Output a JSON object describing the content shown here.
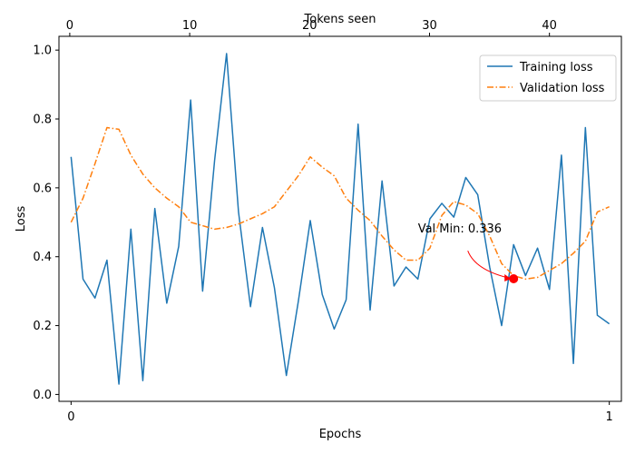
{
  "chart_data": {
    "type": "line",
    "xlabel": "Epochs",
    "ylabel": "Loss",
    "top_xlabel": "Tokens seen",
    "xlim": [
      -0.0225,
      1.0225
    ],
    "ylim": [
      -0.02,
      1.04
    ],
    "x_ticks": [
      0,
      1
    ],
    "y_ticks": [
      0.0,
      0.2,
      0.4,
      0.6,
      0.8,
      1.0
    ],
    "y_tick_labels": [
      "0.0",
      "0.2",
      "0.4",
      "0.6",
      "0.8",
      "1.0"
    ],
    "top_x_ticks": [
      0,
      10,
      20,
      30,
      40
    ],
    "top_xlim": [
      -0.9,
      46.0
    ],
    "legend_position": "top-right",
    "grid": false,
    "series": [
      {
        "name": "Training loss",
        "color": "#1f77b4",
        "style": "solid",
        "x": [
          0.0,
          0.0222,
          0.0444,
          0.0667,
          0.0889,
          0.1111,
          0.1333,
          0.1556,
          0.1778,
          0.2,
          0.2222,
          0.2444,
          0.2667,
          0.2889,
          0.3111,
          0.3333,
          0.3556,
          0.3778,
          0.4,
          0.4222,
          0.4444,
          0.4667,
          0.4889,
          0.5111,
          0.5333,
          0.5556,
          0.5778,
          0.6,
          0.6222,
          0.6444,
          0.6667,
          0.6889,
          0.7111,
          0.7333,
          0.7556,
          0.7778,
          0.8,
          0.8222,
          0.8444,
          0.8667,
          0.8889,
          0.9111,
          0.9333,
          0.9556,
          0.9778,
          1.0
        ],
        "y": [
          0.69,
          0.335,
          0.28,
          0.39,
          0.03,
          0.48,
          0.04,
          0.54,
          0.265,
          0.43,
          0.855,
          0.3,
          0.68,
          0.99,
          0.53,
          0.255,
          0.485,
          0.31,
          0.055,
          0.27,
          0.505,
          0.29,
          0.19,
          0.275,
          0.785,
          0.245,
          0.62,
          0.315,
          0.37,
          0.335,
          0.51,
          0.555,
          0.515,
          0.63,
          0.58,
          0.37,
          0.2,
          0.435,
          0.345,
          0.425,
          0.305,
          0.695,
          0.09,
          0.775,
          0.23,
          0.205
        ]
      },
      {
        "name": "Validation loss",
        "color": "#ff7f0e",
        "style": "dashdot",
        "x": [
          0.0,
          0.0222,
          0.0444,
          0.0667,
          0.0889,
          0.1111,
          0.1333,
          0.1556,
          0.1778,
          0.2,
          0.2222,
          0.2444,
          0.2667,
          0.2889,
          0.3111,
          0.3333,
          0.3556,
          0.3778,
          0.4,
          0.4222,
          0.4444,
          0.4667,
          0.4889,
          0.5111,
          0.5333,
          0.5556,
          0.5778,
          0.6,
          0.6222,
          0.6444,
          0.6667,
          0.6889,
          0.7111,
          0.7333,
          0.7556,
          0.7778,
          0.8,
          0.8222,
          0.8444,
          0.8667,
          0.8889,
          0.9111,
          0.9333,
          0.9556,
          0.9778,
          1.0
        ],
        "y": [
          0.5,
          0.57,
          0.67,
          0.775,
          0.77,
          0.695,
          0.64,
          0.6,
          0.57,
          0.545,
          0.5,
          0.49,
          0.48,
          0.485,
          0.495,
          0.51,
          0.525,
          0.545,
          0.59,
          0.635,
          0.69,
          0.66,
          0.635,
          0.57,
          0.535,
          0.505,
          0.46,
          0.42,
          0.39,
          0.39,
          0.425,
          0.52,
          0.56,
          0.55,
          0.525,
          0.46,
          0.38,
          0.345,
          0.335,
          0.34,
          0.36,
          0.38,
          0.41,
          0.445,
          0.53,
          0.545
        ]
      }
    ],
    "annotation": {
      "text": "Val Min: 0.336",
      "point": [
        0.8222,
        0.336
      ],
      "text_position": [
        0.6444,
        0.47
      ],
      "arrow_color": "#ff0000",
      "marker_color": "#ff0000"
    }
  }
}
